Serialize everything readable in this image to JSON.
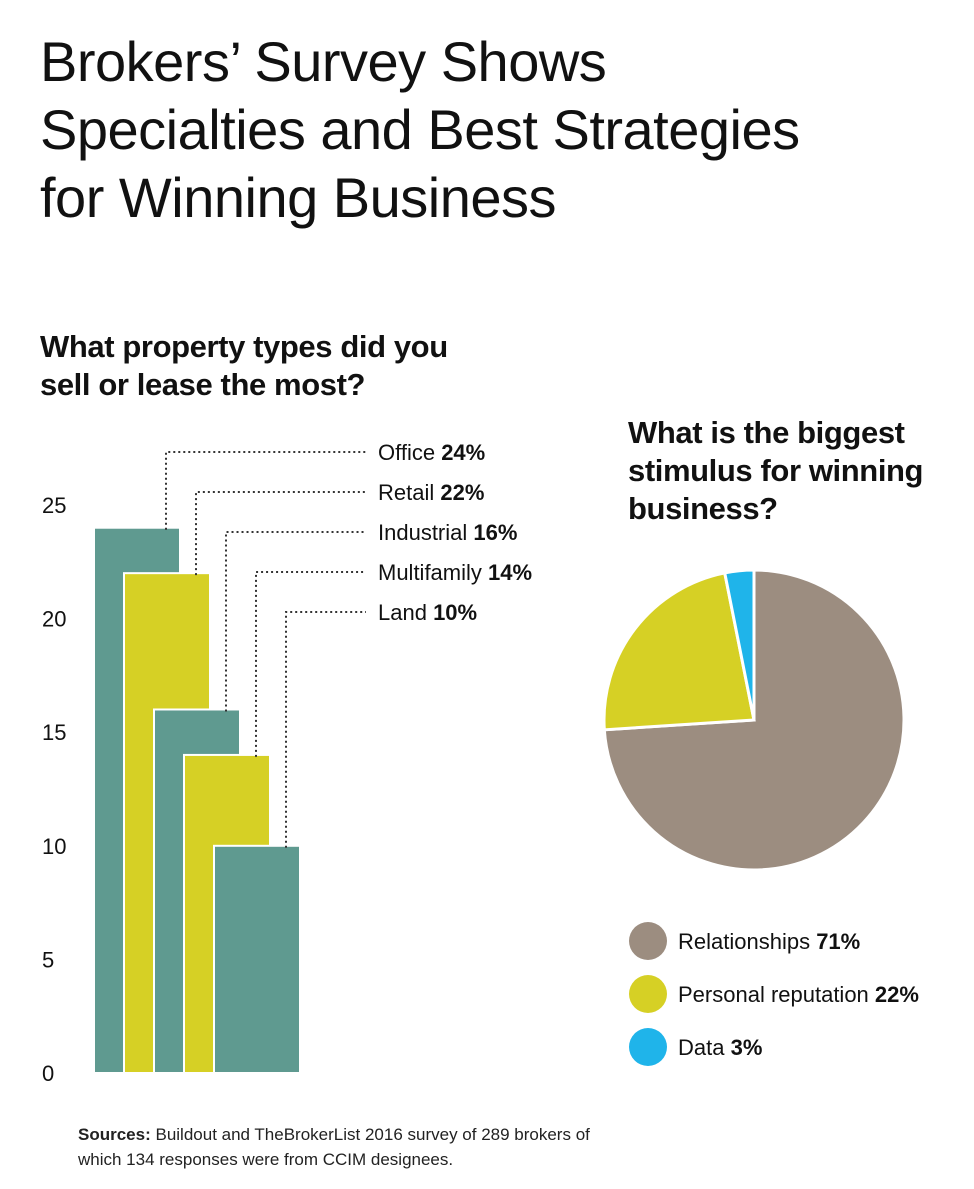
{
  "title_lines": [
    "Brokers’ Survey Shows",
    "Specialties and Best Strategies",
    "for Winning Business"
  ],
  "chart_data": [
    {
      "type": "bar",
      "title_lines": [
        "What property types did you",
        "sell or lease the most?"
      ],
      "categories": [
        "Office",
        "Retail",
        "Industrial",
        "Multifamily",
        "Land"
      ],
      "values": [
        24,
        22,
        16,
        14,
        10
      ],
      "value_labels": [
        "24%",
        "22%",
        "16%",
        "14%",
        "10%"
      ],
      "colors": [
        "#5f9a90",
        "#d6d025",
        "#5f9a90",
        "#d6d025",
        "#5f9a90"
      ],
      "yticks": [
        "0",
        "5",
        "10",
        "15",
        "20",
        "25"
      ],
      "ylim": [
        0,
        25
      ],
      "grid": false,
      "legend": "callout-labels-right"
    },
    {
      "type": "pie",
      "title_lines": [
        "What is the biggest",
        "stimulus for winning",
        "business?"
      ],
      "labels": [
        "Relationships",
        "Personal reputation",
        "Data"
      ],
      "values": [
        71,
        22,
        3
      ],
      "value_labels": [
        "71%",
        "22%",
        "3%"
      ],
      "colors": [
        "#9c8d80",
        "#d6d025",
        "#1fb4ea"
      ],
      "legend": "bottom"
    }
  ],
  "sources": {
    "label": "Sources:",
    "line1": "Buildout and TheBrokerList 2016 survey of 289 brokers of",
    "line2": "which 134 responses were from CCIM designees."
  }
}
